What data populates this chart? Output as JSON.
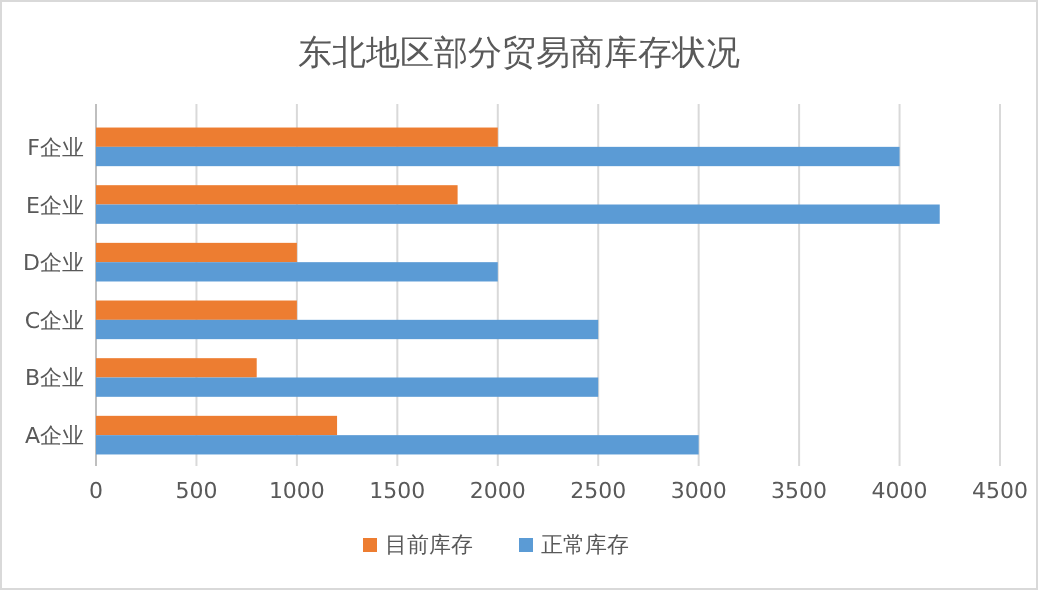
{
  "chart_data": {
    "type": "bar",
    "orientation": "horizontal",
    "title": "东北地区部分贸易商库存状况",
    "categories": [
      "F企业",
      "E企业",
      "D企业",
      "C企业",
      "B企业",
      "A企业"
    ],
    "series": [
      {
        "name": "目前库存",
        "color": "#ed7d31",
        "values": [
          2000,
          1800,
          1000,
          1000,
          800,
          1200
        ]
      },
      {
        "name": "正常库存",
        "color": "#5b9bd5",
        "values": [
          4000,
          4200,
          2000,
          2500,
          2500,
          3000
        ]
      }
    ],
    "xlim": [
      0,
      4500
    ],
    "xticks": [
      0,
      500,
      1000,
      1500,
      2000,
      2500,
      3000,
      3500,
      4000,
      4500
    ],
    "grid": "x",
    "legend": "bottom"
  }
}
